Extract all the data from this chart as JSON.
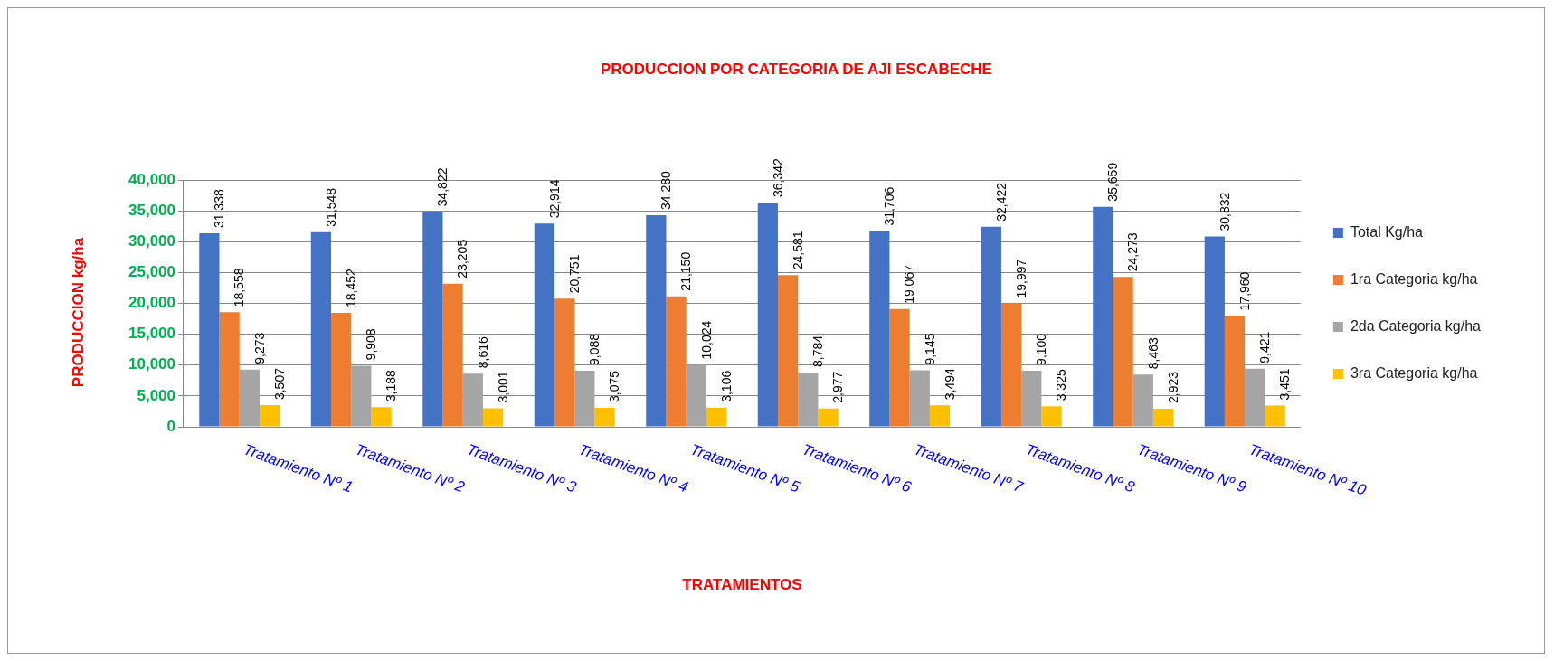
{
  "chart_data": {
    "type": "bar",
    "title": "PRODUCCION POR CATEGORIA DE AJI ESCABECHE",
    "xlabel": "TRATAMIENTOS",
    "ylabel": "PRODUCCION kg/ha",
    "categories": [
      "Tratamiento Nº 1",
      "Tratamiento Nº 2",
      "Tratamiento Nº 3",
      "Tratamiento Nº 4",
      "Tratamiento Nº 5",
      "Tratamiento Nº 6",
      "Tratamiento Nº 7",
      "Tratamiento Nº 8",
      "Tratamiento Nº 9",
      "Tratamiento Nº 10"
    ],
    "series": [
      {
        "name": "Total Kg/ha",
        "color": "#4472c4",
        "values": [
          31338,
          31548,
          34822,
          32914,
          34280,
          36342,
          31706,
          32422,
          35659,
          30832
        ],
        "value_labels": [
          "31,338",
          "31,548",
          "34,822",
          "32,914",
          "34,280",
          "36,342",
          "31,706",
          "32,422",
          "35,659",
          "30,832"
        ]
      },
      {
        "name": "1ra Categoria kg/ha",
        "color": "#ed7d31",
        "values": [
          18558,
          18452,
          23205,
          20751,
          21150,
          24581,
          19067,
          19997,
          24273,
          17960
        ],
        "value_labels": [
          "18,558",
          "18,452",
          "23,205",
          "20,751",
          "21,150",
          "24,581",
          "19,067",
          "19,997",
          "24,273",
          "17,960"
        ]
      },
      {
        "name": "2da Categoria kg/ha",
        "color": "#a5a5a5",
        "values": [
          9273,
          9908,
          8616,
          9088,
          10024,
          8784,
          9145,
          9100,
          8463,
          9421
        ],
        "value_labels": [
          "9,273",
          "9,908",
          "8,616",
          "9,088",
          "10,024",
          "8,784",
          "9,145",
          "9,100",
          "8,463",
          "9,421"
        ]
      },
      {
        "name": "3ra Categoria kg/ha",
        "color": "#ffc000",
        "values": [
          3507,
          3188,
          3001,
          3075,
          3106,
          2977,
          3494,
          3325,
          2923,
          3451
        ],
        "value_labels": [
          "3,507",
          "3,188",
          "3,001",
          "3,075",
          "3,106",
          "2,977",
          "3,494",
          "3,325",
          "2,923",
          "3,451"
        ]
      }
    ],
    "ylim": [
      0,
      40000
    ],
    "yticks": [
      {
        "value": 0,
        "label": "0"
      },
      {
        "value": 5000,
        "label": "5,000"
      },
      {
        "value": 10000,
        "label": "10,000"
      },
      {
        "value": 15000,
        "label": "15,000"
      },
      {
        "value": 20000,
        "label": "20,000"
      },
      {
        "value": 25000,
        "label": "25,000"
      },
      {
        "value": 30000,
        "label": "30,000"
      },
      {
        "value": 35000,
        "label": "35,000"
      },
      {
        "value": 40000,
        "label": "40,000"
      }
    ],
    "grid": "y",
    "legend": "right"
  }
}
